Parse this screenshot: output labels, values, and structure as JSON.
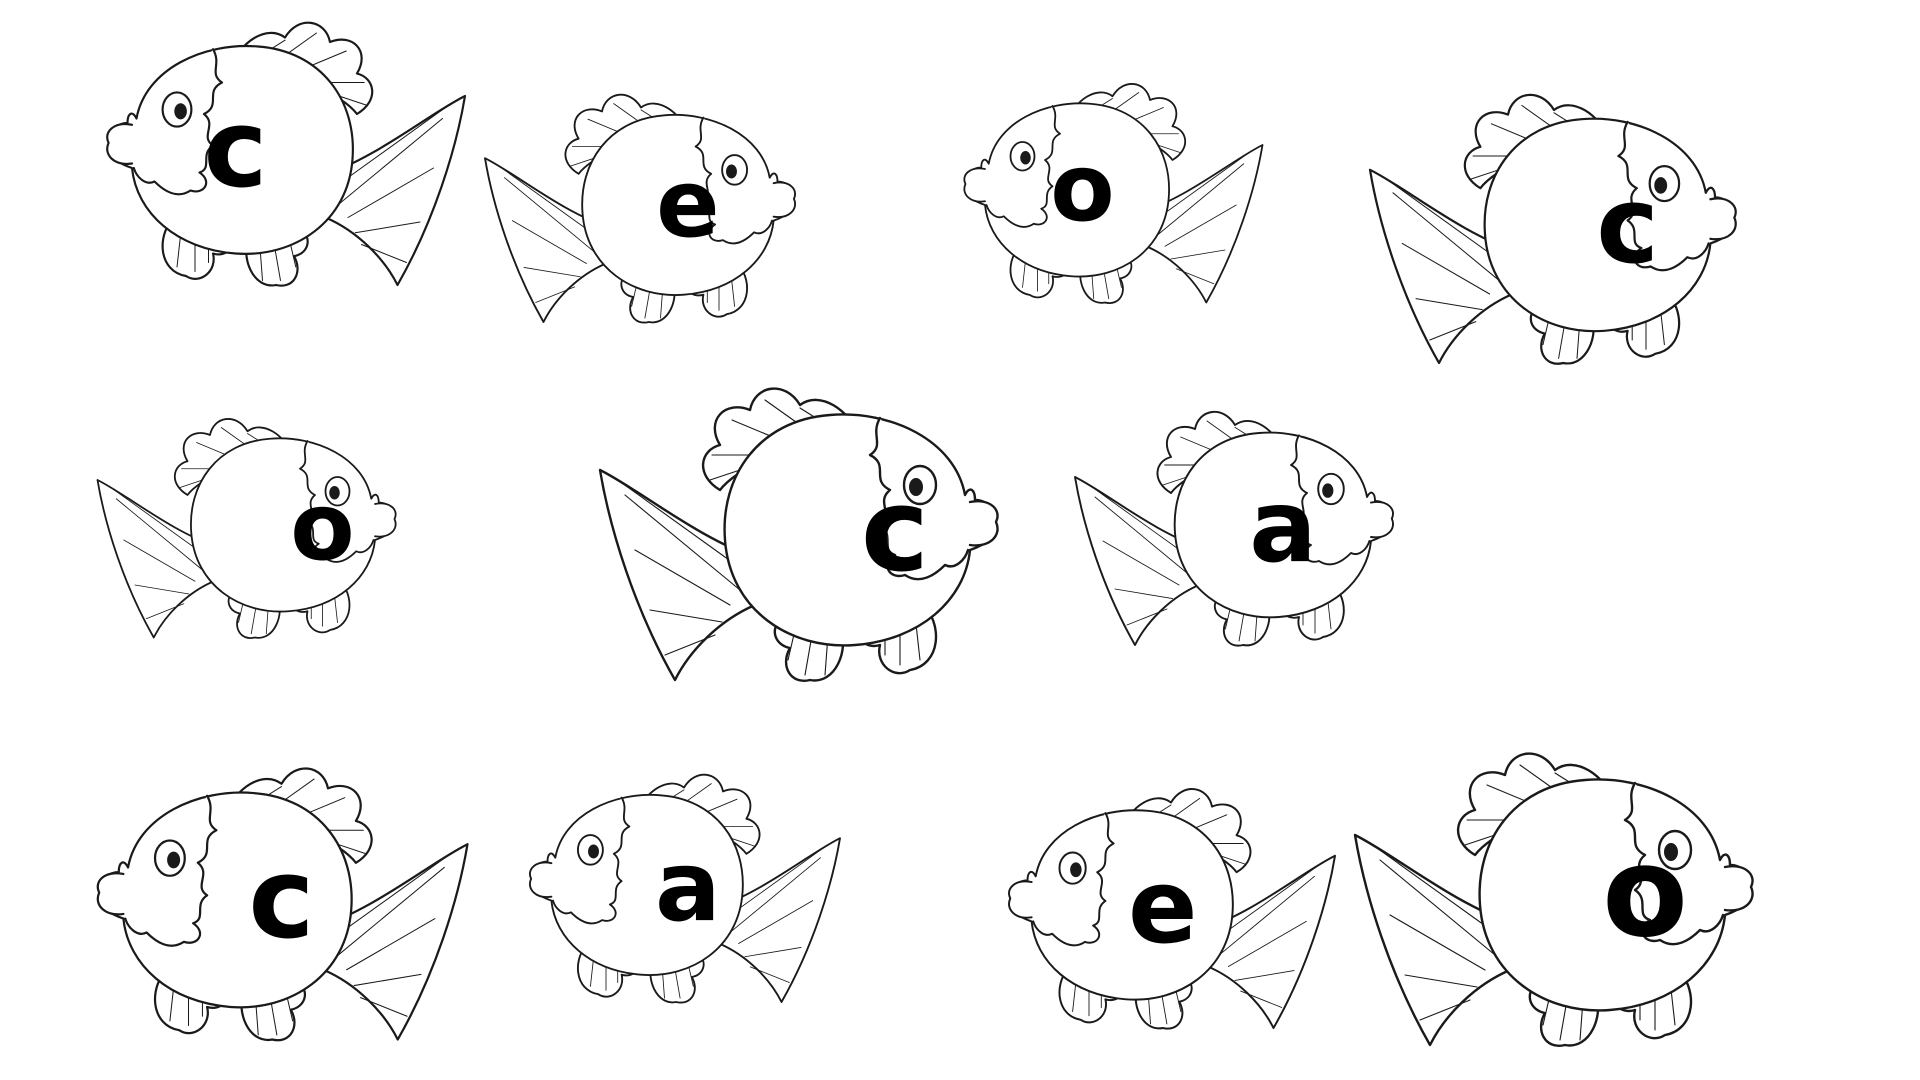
{
  "worksheet": {
    "fish": [
      {
        "letter": "c"
      },
      {
        "letter": "e"
      },
      {
        "letter": "o"
      },
      {
        "letter": "c"
      },
      {
        "letter": "o"
      },
      {
        "letter": "c"
      },
      {
        "letter": "a"
      },
      {
        "letter": "c"
      },
      {
        "letter": "a"
      },
      {
        "letter": "e"
      },
      {
        "letter": "o"
      }
    ],
    "colors": {
      "outline": "#1a1a1a",
      "letter": "#000000",
      "background": "#ffffff"
    }
  }
}
